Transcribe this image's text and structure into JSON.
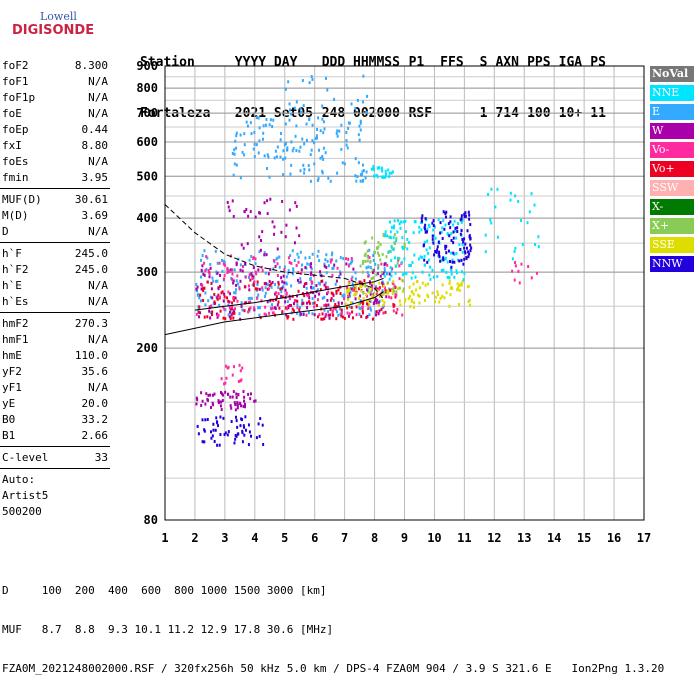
{
  "logo": {
    "line1": "Lowell",
    "line2": "DIGISONDE"
  },
  "header": {
    "row1": [
      "Station",
      "YYYY DAY",
      "DDD HHMMSS",
      "P1",
      "FFS",
      "S",
      "AXN",
      "PPS",
      "IGA",
      "PS"
    ],
    "row2": [
      "Fortaleza",
      "2021 Set05",
      "248 002000",
      "RSF",
      "",
      "1",
      "714",
      "100",
      "10+",
      "11"
    ]
  },
  "params": [
    {
      "key": "foF2",
      "value": "8.300"
    },
    {
      "key": "foF1",
      "value": "N/A"
    },
    {
      "key": "foF1p",
      "value": "N/A"
    },
    {
      "key": "foE",
      "value": "N/A"
    },
    {
      "key": "foEp",
      "value": "0.44"
    },
    {
      "key": "fxI",
      "value": "8.80"
    },
    {
      "key": "foEs",
      "value": "N/A"
    },
    {
      "key": "fmin",
      "value": "3.95"
    },
    {
      "sep": true
    },
    {
      "key": "MUF(D)",
      "value": "30.61"
    },
    {
      "key": "M(D)",
      "value": "3.69"
    },
    {
      "key": "D",
      "value": "N/A"
    },
    {
      "sep": true
    },
    {
      "key": "h`F",
      "value": "245.0"
    },
    {
      "key": "h`F2",
      "value": "245.0"
    },
    {
      "key": "h`E",
      "value": "N/A"
    },
    {
      "key": "h`Es",
      "value": "N/A"
    },
    {
      "sep": true
    },
    {
      "key": "hmF2",
      "value": "270.3"
    },
    {
      "key": "hmF1",
      "value": "N/A"
    },
    {
      "key": "hmE",
      "value": "110.0"
    },
    {
      "key": "yF2",
      "value": "35.6"
    },
    {
      "key": "yF1",
      "value": "N/A"
    },
    {
      "key": "yE",
      "value": "20.0"
    },
    {
      "key": "B0",
      "value": "33.2"
    },
    {
      "key": "B1",
      "value": "2.66"
    },
    {
      "sep": true
    },
    {
      "key": "C-level",
      "value": "33"
    },
    {
      "sep": true
    }
  ],
  "notes": [
    "Auto:",
    "Artist5",
    "500200"
  ],
  "legend": [
    {
      "label": "NoVal",
      "color": "#777777"
    },
    {
      "label": "NNE",
      "color": "#00e5ff"
    },
    {
      "label": "E",
      "color": "#33aaff"
    },
    {
      "label": "W",
      "color": "#aa00aa"
    },
    {
      "label": "Vo-",
      "color": "#ff2aa0"
    },
    {
      "label": "Vo+",
      "color": "#ee0022"
    },
    {
      "label": "SSW",
      "color": "#ffb0b0"
    },
    {
      "label": "X-",
      "color": "#007a00"
    },
    {
      "label": "X+",
      "color": "#88cc55"
    },
    {
      "label": "SSE",
      "color": "#dddd00"
    },
    {
      "label": "NNW",
      "color": "#2200dd"
    }
  ],
  "footer": {
    "line1": "D     100  200  400  600  800 1000 1500 3000 [km]",
    "line2": "MUF   8.7  8.8  9.3 10.1 11.2 12.9 17.8 30.6 [MHz]",
    "line3": "FZA0M_2021248002000.RSF / 320fx256h 50 kHz 5.0 km / DPS-4 FZA0M 904 / 3.9 S 321.6 E   Ion2Png 1.3.20"
  },
  "chart_data": {
    "type": "scatter",
    "x_ticks": [
      "1",
      "2",
      "3",
      "4",
      "5",
      "6",
      "7",
      "8",
      "9",
      "10",
      "11",
      "12",
      "13",
      "14",
      "15",
      "16",
      "17"
    ],
    "y_ticks": [
      "80",
      "200",
      "300",
      "400",
      "500",
      "600",
      "700",
      "800",
      "900"
    ],
    "xlim": [
      1,
      17
    ],
    "y_scale": "log",
    "ylim": [
      80,
      900
    ],
    "grid": true,
    "clusters": [
      {
        "series": "W",
        "x": [
          2.0,
          4.0
        ],
        "y": [
          145,
          160
        ],
        "n": 60
      },
      {
        "series": "NNW",
        "x": [
          2.0,
          4.3
        ],
        "y": [
          120,
          140
        ],
        "n": 60
      },
      {
        "series": "Vo-",
        "x": [
          2.8,
          3.7
        ],
        "y": [
          165,
          185
        ],
        "n": 15
      },
      {
        "series": "E",
        "x": [
          2.0,
          8.5
        ],
        "y": [
          240,
          340
        ],
        "n": 260
      },
      {
        "series": "W",
        "x": [
          2.0,
          8.5
        ],
        "y": [
          235,
          320
        ],
        "n": 180
      },
      {
        "series": "Vo+",
        "x": [
          2.0,
          8.7
        ],
        "y": [
          235,
          290
        ],
        "n": 160
      },
      {
        "series": "Vo-",
        "x": [
          2.0,
          9.0
        ],
        "y": [
          240,
          330
        ],
        "n": 150
      },
      {
        "series": "SSE",
        "x": [
          7.0,
          11.2
        ],
        "y": [
          250,
          290
        ],
        "n": 120
      },
      {
        "series": "X+",
        "x": [
          7.5,
          9.0
        ],
        "y": [
          270,
          370
        ],
        "n": 60
      },
      {
        "series": "NNE",
        "x": [
          8.3,
          11.0
        ],
        "y": [
          290,
          400
        ],
        "n": 140
      },
      {
        "series": "NNW",
        "x": [
          9.5,
          11.2
        ],
        "y": [
          310,
          420
        ],
        "n": 100
      },
      {
        "series": "E",
        "x": [
          3.2,
          7.7
        ],
        "y": [
          490,
          690
        ],
        "n": 150
      },
      {
        "series": "NNE",
        "x": [
          7.8,
          8.6
        ],
        "y": [
          500,
          535
        ],
        "n": 25
      },
      {
        "series": "W",
        "x": [
          3.0,
          5.5
        ],
        "y": [
          330,
          450
        ],
        "n": 40
      },
      {
        "series": "E",
        "x": [
          5.0,
          8.0
        ],
        "y": [
          700,
          860
        ],
        "n": 25
      },
      {
        "series": "NNE",
        "x": [
          11.5,
          13.5
        ],
        "y": [
          320,
          480
        ],
        "n": 25
      },
      {
        "series": "Vo-",
        "x": [
          12.5,
          13.5
        ],
        "y": [
          280,
          320
        ],
        "n": 10
      }
    ],
    "lines": [
      {
        "style": "dashed",
        "points": [
          [
            1.0,
            430
          ],
          [
            2.0,
            370
          ],
          [
            3.0,
            330
          ],
          [
            4.0,
            310
          ],
          [
            5.0,
            300
          ],
          [
            6.0,
            295
          ],
          [
            7.0,
            290
          ],
          [
            8.0,
            275
          ],
          [
            8.3,
            260
          ]
        ]
      },
      {
        "style": "solid",
        "points": [
          [
            1.0,
            215
          ],
          [
            3.0,
            230
          ],
          [
            5.0,
            240
          ],
          [
            7.0,
            250
          ],
          [
            8.0,
            262
          ],
          [
            8.3,
            270
          ]
        ]
      },
      {
        "style": "solid",
        "points": [
          [
            2.0,
            245
          ],
          [
            3.0,
            250
          ],
          [
            4.0,
            255
          ],
          [
            5.0,
            262
          ],
          [
            6.0,
            270
          ],
          [
            7.0,
            278
          ],
          [
            8.0,
            285
          ],
          [
            8.3,
            290
          ]
        ]
      }
    ]
  }
}
